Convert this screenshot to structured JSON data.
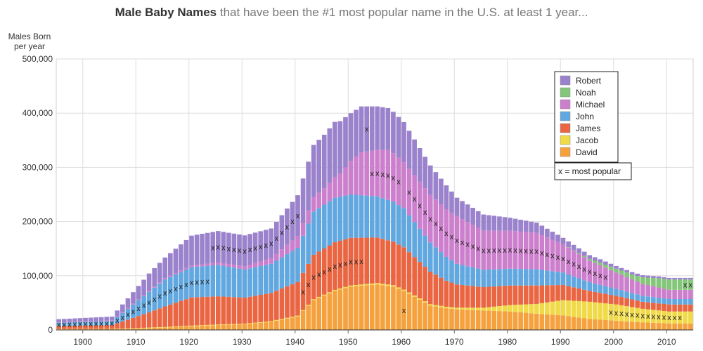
{
  "title": {
    "bold": "Male Baby Names",
    "rest": "that have been the #1 most popular name in the U.S. at least 1 year..."
  },
  "chart_data": {
    "type": "bar",
    "stacked": true,
    "ylabel_line1": "Males Born",
    "ylabel_line2": "per year",
    "xlim": [
      1895,
      2014
    ],
    "ylim": [
      0,
      500000
    ],
    "yticks": [
      0,
      100000,
      200000,
      300000,
      400000,
      500000
    ],
    "ytick_labels": [
      "0",
      "100,000",
      "200,000",
      "300,000",
      "400,000",
      "500,000"
    ],
    "xticks": [
      1900,
      1910,
      1920,
      1930,
      1940,
      1950,
      1960,
      1970,
      1980,
      1990,
      2000,
      2010
    ],
    "xtick_labels": [
      "1900",
      "1910",
      "1920",
      "1930",
      "1940",
      "1950",
      "1960",
      "1970",
      "1980",
      "1990",
      "2000",
      "2010"
    ],
    "grid": true,
    "legend_position": "top-right",
    "legend_note": "x = most popular",
    "marker_symbol": "x",
    "series_order_bottom_to_top": [
      "David",
      "Jacob",
      "James",
      "John",
      "Michael",
      "Noah",
      "Robert"
    ],
    "series": [
      {
        "name": "Robert",
        "color": "#9b82cc",
        "anchors": [
          [
            1895,
            6000
          ],
          [
            1905,
            7000
          ],
          [
            1908,
            18000
          ],
          [
            1912,
            32000
          ],
          [
            1915,
            38000
          ],
          [
            1920,
            55000
          ],
          [
            1925,
            58000
          ],
          [
            1930,
            57000
          ],
          [
            1935,
            55000
          ],
          [
            1940,
            75000
          ],
          [
            1943,
            96000
          ],
          [
            1947,
            102000
          ],
          [
            1950,
            88000
          ],
          [
            1955,
            80000
          ],
          [
            1960,
            74000
          ],
          [
            1965,
            54000
          ],
          [
            1968,
            44000
          ],
          [
            1970,
            34000
          ],
          [
            1975,
            30000
          ],
          [
            1980,
            24000
          ],
          [
            1985,
            19000
          ],
          [
            1990,
            12000
          ],
          [
            1995,
            7000
          ],
          [
            2000,
            5000
          ],
          [
            2005,
            4000
          ],
          [
            2010,
            3000
          ]
        ]
      },
      {
        "name": "Noah",
        "color": "#85c77a",
        "anchors": [
          [
            1895,
            0
          ],
          [
            1990,
            0
          ],
          [
            1992,
            1000
          ],
          [
            1995,
            3000
          ],
          [
            1997,
            5000
          ],
          [
            2000,
            7000
          ],
          [
            2003,
            9000
          ],
          [
            2005,
            12000
          ],
          [
            2008,
            17000
          ],
          [
            2010,
            19000
          ]
        ]
      },
      {
        "name": "Michael",
        "color": "#cc7fcc",
        "anchors": [
          [
            1895,
            400
          ],
          [
            1910,
            1500
          ],
          [
            1920,
            3000
          ],
          [
            1930,
            6000
          ],
          [
            1935,
            10000
          ],
          [
            1940,
            22000
          ],
          [
            1945,
            30000
          ],
          [
            1948,
            42000
          ],
          [
            1950,
            62000
          ],
          [
            1952,
            79000
          ],
          [
            1955,
            86000
          ],
          [
            1957,
            92000
          ],
          [
            1960,
            85000
          ],
          [
            1965,
            88000
          ],
          [
            1970,
            88000
          ],
          [
            1975,
            72000
          ],
          [
            1980,
            70000
          ],
          [
            1985,
            67000
          ],
          [
            1990,
            52000
          ],
          [
            1995,
            40000
          ],
          [
            2000,
            30000
          ],
          [
            2005,
            22000
          ],
          [
            2010,
            17000
          ]
        ]
      },
      {
        "name": "John",
        "color": "#62a8e0",
        "anchors": [
          [
            1895,
            6000
          ],
          [
            1905,
            7500
          ],
          [
            1908,
            20000
          ],
          [
            1912,
            38000
          ],
          [
            1915,
            50000
          ],
          [
            1920,
            56000
          ],
          [
            1925,
            58000
          ],
          [
            1930,
            52000
          ],
          [
            1935,
            54000
          ],
          [
            1940,
            63000
          ],
          [
            1943,
            80000
          ],
          [
            1947,
            82000
          ],
          [
            1950,
            80000
          ],
          [
            1955,
            76000
          ],
          [
            1960,
            72000
          ],
          [
            1965,
            54000
          ],
          [
            1968,
            44000
          ],
          [
            1970,
            38000
          ],
          [
            1975,
            32000
          ],
          [
            1980,
            31000
          ],
          [
            1985,
            30000
          ],
          [
            1990,
            23000
          ],
          [
            1995,
            16000
          ],
          [
            2000,
            13000
          ],
          [
            2005,
            11000
          ],
          [
            2010,
            10000
          ]
        ]
      },
      {
        "name": "James",
        "color": "#ea6642",
        "anchors": [
          [
            1895,
            6000
          ],
          [
            1905,
            7000
          ],
          [
            1908,
            16000
          ],
          [
            1912,
            28000
          ],
          [
            1915,
            38000
          ],
          [
            1920,
            52000
          ],
          [
            1925,
            52000
          ],
          [
            1930,
            48000
          ],
          [
            1935,
            52000
          ],
          [
            1940,
            62000
          ],
          [
            1943,
            82000
          ],
          [
            1947,
            88000
          ],
          [
            1950,
            88000
          ],
          [
            1955,
            84000
          ],
          [
            1960,
            78000
          ],
          [
            1965,
            60000
          ],
          [
            1968,
            48000
          ],
          [
            1970,
            43000
          ],
          [
            1975,
            38000
          ],
          [
            1980,
            36000
          ],
          [
            1985,
            34000
          ],
          [
            1990,
            28000
          ],
          [
            1995,
            20000
          ],
          [
            2000,
            16000
          ],
          [
            2005,
            13000
          ],
          [
            2010,
            13000
          ]
        ]
      },
      {
        "name": "Jacob",
        "color": "#f0da48",
        "anchors": [
          [
            1895,
            250
          ],
          [
            1910,
            800
          ],
          [
            1920,
            1000
          ],
          [
            1930,
            1000
          ],
          [
            1940,
            1500
          ],
          [
            1950,
            2000
          ],
          [
            1955,
            2500
          ],
          [
            1960,
            2500
          ],
          [
            1965,
            2500
          ],
          [
            1970,
            3000
          ],
          [
            1975,
            5000
          ],
          [
            1980,
            12000
          ],
          [
            1985,
            18000
          ],
          [
            1990,
            28000
          ],
          [
            1995,
            32000
          ],
          [
            2000,
            30000
          ],
          [
            2005,
            25000
          ],
          [
            2010,
            22000
          ]
        ]
      },
      {
        "name": "David",
        "color": "#f5a23e",
        "anchors": [
          [
            1895,
            1200
          ],
          [
            1905,
            1400
          ],
          [
            1908,
            2200
          ],
          [
            1912,
            3500
          ],
          [
            1915,
            4500
          ],
          [
            1920,
            7000
          ],
          [
            1925,
            9000
          ],
          [
            1930,
            10500
          ],
          [
            1935,
            15000
          ],
          [
            1940,
            25000
          ],
          [
            1943,
            55000
          ],
          [
            1947,
            72000
          ],
          [
            1950,
            80000
          ],
          [
            1955,
            84000
          ],
          [
            1958,
            80000
          ],
          [
            1960,
            72000
          ],
          [
            1965,
            45000
          ],
          [
            1968,
            40000
          ],
          [
            1970,
            38000
          ],
          [
            1975,
            36000
          ],
          [
            1980,
            34000
          ],
          [
            1985,
            30000
          ],
          [
            1990,
            27000
          ],
          [
            1995,
            20000
          ],
          [
            2000,
            17000
          ],
          [
            2005,
            14000
          ],
          [
            2010,
            12000
          ]
        ]
      }
    ],
    "most_popular_years": [
      {
        "name": "John",
        "years": [
          1895,
          1896,
          1897,
          1898,
          1899,
          1900,
          1901,
          1902,
          1903,
          1904,
          1905,
          1906,
          1907,
          1908,
          1909,
          1910,
          1911,
          1912,
          1913,
          1914,
          1915,
          1916,
          1917,
          1918,
          1919,
          1920,
          1921,
          1922,
          1923
        ]
      },
      {
        "name": "Robert",
        "years": [
          1924,
          1925,
          1926,
          1927,
          1928,
          1929,
          1930,
          1931,
          1932,
          1933,
          1934,
          1935,
          1936,
          1937,
          1938,
          1939,
          1940,
          1953
        ]
      },
      {
        "name": "James",
        "years": [
          1941,
          1942,
          1943,
          1944,
          1945,
          1946,
          1947,
          1948,
          1949,
          1950,
          1951,
          1952
        ]
      },
      {
        "name": "Michael",
        "years": [
          1954,
          1955,
          1956,
          1957,
          1958,
          1959,
          1961,
          1962,
          1963,
          1964,
          1965,
          1966,
          1967,
          1968,
          1969,
          1970,
          1971,
          1972,
          1973,
          1974,
          1975,
          1976,
          1977,
          1978,
          1979,
          1980,
          1981,
          1982,
          1983,
          1984,
          1985,
          1986,
          1987,
          1988,
          1989,
          1990,
          1991,
          1992,
          1993,
          1994,
          1995,
          1996,
          1997,
          1998
        ]
      },
      {
        "name": "David",
        "years": [
          1960
        ]
      },
      {
        "name": "Jacob",
        "years": [
          1999,
          2000,
          2001,
          2002,
          2003,
          2004,
          2005,
          2006,
          2007,
          2008,
          2009,
          2010,
          2011,
          2012
        ]
      },
      {
        "name": "Noah",
        "years": [
          2013,
          2014
        ]
      }
    ]
  }
}
